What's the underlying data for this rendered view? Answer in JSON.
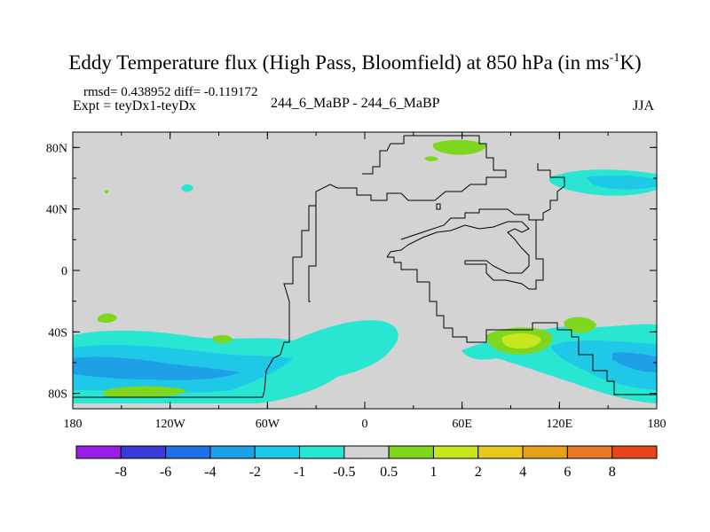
{
  "title_main": "Eddy Temperature flux (High Pass, Bloomfield) at 850 hPa (in ms",
  "title_sup": "-1",
  "title_end": "K)",
  "stats": "rmsd= 0.438952 diff= -0.119172",
  "expt": "Expt = teyDx1-teyDx",
  "case": "244_6_MaBP - 244_6_MaBP",
  "season": "JJA",
  "lat_ticks": [
    {
      "label": "80N",
      "lat": 80
    },
    {
      "label": "40N",
      "lat": 40
    },
    {
      "label": "0",
      "lat": 0
    },
    {
      "label": "40S",
      "lat": -40
    },
    {
      "label": "80S",
      "lat": -80
    }
  ],
  "lon_ticks": [
    {
      "label": "180",
      "lon": -180
    },
    {
      "label": "120W",
      "lon": -120
    },
    {
      "label": "60W",
      "lon": -60
    },
    {
      "label": "0",
      "lon": 0
    },
    {
      "label": "60E",
      "lon": 60
    },
    {
      "label": "120E",
      "lon": 120
    },
    {
      "label": "180",
      "lon": 180
    }
  ],
  "colorbar": {
    "colors": [
      "#9b1ee6",
      "#3a3ad6",
      "#1e6ee6",
      "#1ea0e6",
      "#1ec8e6",
      "#28e6d2",
      "#d3d3d3",
      "#7fd61e",
      "#c8e61e",
      "#e6c81e",
      "#e6a01e",
      "#e67828",
      "#e6461e"
    ],
    "labels": [
      "-8",
      "-6",
      "-4",
      "-2",
      "-1",
      "-0.5",
      "0.5",
      "1",
      "2",
      "4",
      "6",
      "8"
    ]
  },
  "colors": {
    "background_field": "#d3d3d3",
    "coast": "#000000"
  }
}
